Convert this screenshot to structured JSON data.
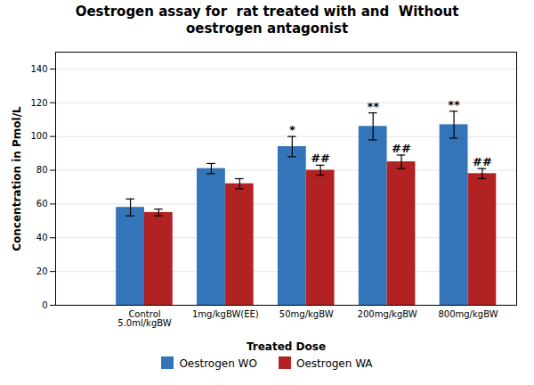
{
  "chart_data": {
    "type": "bar",
    "title": "Oestrogen assay for  rat treated with and  Without",
    "subtitle": "oestrogen antagonist",
    "xlabel": "Treated Dose",
    "ylabel": "Concentration in Pmol/L",
    "categories": [
      "Control\n5.0ml/kgBW",
      "1mg/kgBW(EE)",
      "50mg/kgBW",
      "200mg/kgBW",
      "800mg/kgBW"
    ],
    "series": [
      {
        "name": "Oestrogen WO",
        "color": "#3375B8",
        "values": [
          58,
          81,
          94,
          106,
          107
        ],
        "errors": [
          5,
          3,
          6,
          8,
          8
        ],
        "annotations": [
          null,
          null,
          "*",
          "**",
          "**"
        ]
      },
      {
        "name": "Oestrogen WA",
        "color": "#B22222",
        "values": [
          55,
          72,
          80,
          85,
          78
        ],
        "errors": [
          2,
          3,
          3,
          4,
          3
        ],
        "annotations": [
          null,
          null,
          "##",
          "##",
          "##"
        ]
      }
    ],
    "ylim": [
      0,
      150
    ],
    "yticks": [
      0,
      20,
      40,
      60,
      80,
      100,
      120,
      140
    ],
    "grid": true,
    "legend": "bottom"
  }
}
